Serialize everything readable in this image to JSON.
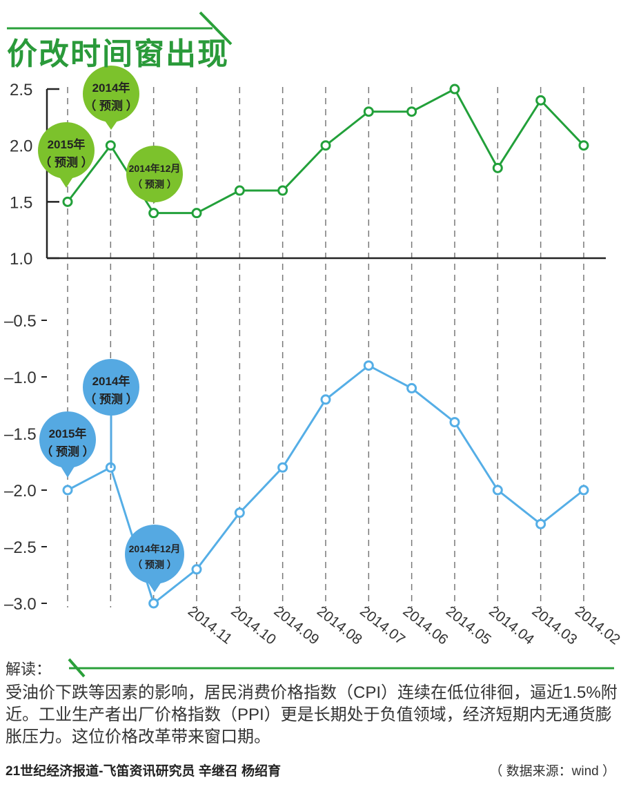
{
  "title": "价改时间窗出现",
  "chart_data": [
    {
      "type": "line",
      "name": "CPI",
      "categories": [
        "2015年（预测）",
        "2014年（预测）",
        "2014年12月（预测）",
        "2014.11",
        "2014.10",
        "2014.09",
        "2014.08",
        "2014.07",
        "2014.06",
        "2014.05",
        "2014.04",
        "2014.03",
        "2014.02"
      ],
      "values": [
        1.5,
        2.0,
        1.4,
        1.4,
        1.6,
        1.6,
        2.0,
        2.3,
        2.3,
        2.5,
        1.8,
        2.4,
        2.0
      ],
      "ylim": [
        1.0,
        2.5
      ],
      "yticks": [
        "2.5",
        "2.0",
        "1.5",
        "1.0"
      ],
      "color": "#22a03a",
      "bubble_color": "#7cc22c"
    },
    {
      "type": "line",
      "name": "PPI",
      "categories": [
        "2015年（预测）",
        "2014年（预测）",
        "2014年12月（预测）",
        "2014.11",
        "2014.10",
        "2014.09",
        "2014.08",
        "2014.07",
        "2014.06",
        "2014.05",
        "2014.04",
        "2014.03",
        "2014.02"
      ],
      "values": [
        -2.0,
        -1.8,
        -3.0,
        -2.7,
        -2.2,
        -1.8,
        -1.2,
        -0.9,
        -1.1,
        -1.4,
        -2.0,
        -2.3,
        -2.0
      ],
      "ylim": [
        -3.0,
        -0.5
      ],
      "yticks": [
        "-0.5",
        "-1.0",
        "-1.5",
        "-2.0",
        "-2.5",
        "-3.0"
      ],
      "color": "#55aee6",
      "bubble_color": "#55a9e2"
    }
  ],
  "forecast_labels": [
    {
      "year": "2015年",
      "note": "（ 预测 ）"
    },
    {
      "year": "2014年",
      "note": "（ 预测 ）"
    },
    {
      "year": "2014年12月",
      "note": "（ 预测 ）"
    }
  ],
  "x_labels": [
    "2014.11",
    "2014.10",
    "2014.09",
    "2014.08",
    "2014.07",
    "2014.06",
    "2014.05",
    "2014.04",
    "2014.03",
    "2014.02"
  ],
  "interpretation": {
    "label": "解读：",
    "text": "受油价下跌等因素的影响，居民消费价格指数（CPI）连续在低位徘徊，逼近1.5%附近。工业生产者出厂价格指数（PPI）更是长期处于负值领域，经济短期内无通货膨胀压力。这位价格改革带来窗口期。"
  },
  "credit": "21世纪经济报道-飞笛资讯研究员 辛继召 杨绍育",
  "source": "（ 数据来源：wind ）"
}
